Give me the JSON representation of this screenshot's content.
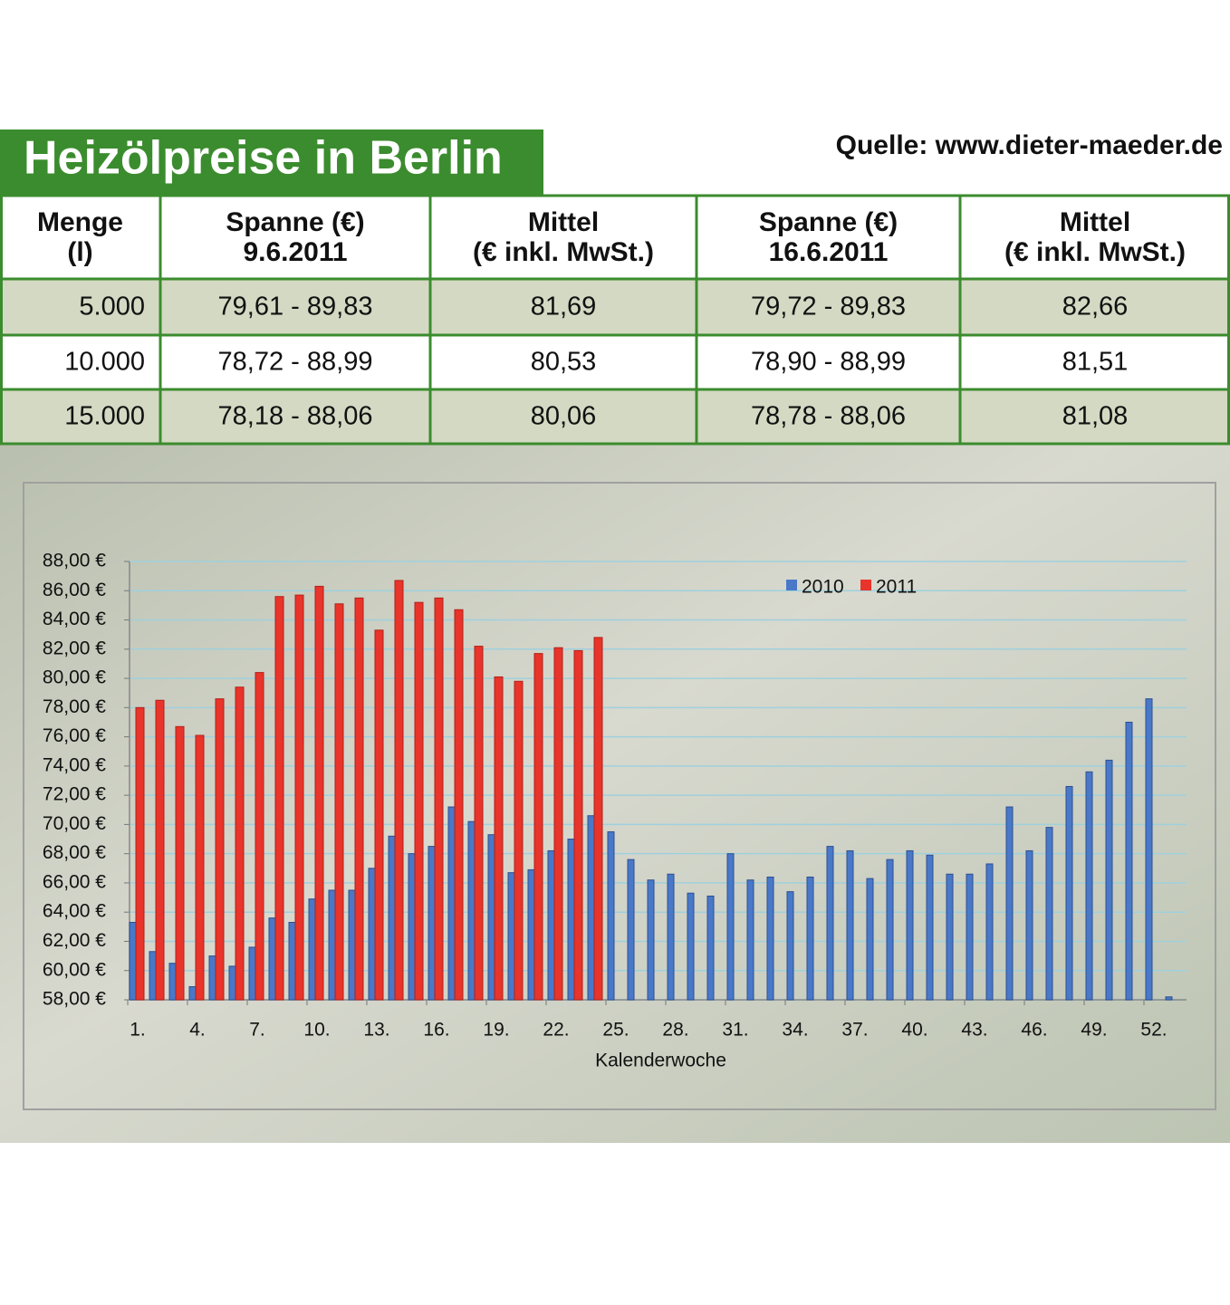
{
  "title": "Heizölpreise in Berlin",
  "source": "Quelle: www.dieter-maeder.de",
  "table": {
    "header": [
      [
        "Menge",
        "(l)"
      ],
      [
        "Spanne (€)",
        "9.6.2011"
      ],
      [
        "Mittel",
        "(€ inkl. MwSt.)"
      ],
      [
        "Spanne (€)",
        "16.6.2011"
      ],
      [
        "Mittel",
        "(€ inkl. MwSt.)"
      ]
    ],
    "rows": [
      [
        "5.000",
        "79,61 - 89,83",
        "81,69",
        "79,72 - 89,83",
        "82,66"
      ],
      [
        "10.000",
        "78,72 - 88,99",
        "80,53",
        "78,90 - 88,99",
        "81,51"
      ],
      [
        "15.000",
        "78,18 - 88,06",
        "80,06",
        "78,78 - 88,06",
        "81,08"
      ]
    ]
  },
  "chart_data": {
    "type": "bar",
    "x_label": "Kalenderwoche",
    "categories": [
      "1.",
      null,
      null,
      "4.",
      null,
      null,
      "7.",
      null,
      null,
      "10.",
      null,
      null,
      "13.",
      null,
      null,
      "16.",
      null,
      null,
      "19.",
      null,
      null,
      "22.",
      null,
      null,
      "25.",
      null,
      null,
      "28.",
      null,
      null,
      "31.",
      null,
      null,
      "34.",
      null,
      null,
      "37.",
      null,
      null,
      "40.",
      null,
      null,
      "43.",
      null,
      null,
      "46.",
      null,
      null,
      "49.",
      null,
      null,
      "52.",
      null
    ],
    "series": [
      {
        "name": "2010",
        "color": "#4a78c8",
        "values": [
          63.3,
          61.3,
          60.5,
          58.9,
          61.0,
          60.3,
          61.6,
          63.6,
          63.3,
          64.9,
          65.5,
          65.5,
          67.0,
          69.2,
          68.0,
          68.5,
          71.2,
          70.2,
          69.3,
          66.7,
          66.9,
          68.2,
          69.0,
          70.6,
          69.5,
          67.6,
          66.2,
          66.6,
          65.3,
          65.1,
          68.0,
          66.2,
          66.4,
          65.4,
          66.4,
          68.5,
          68.2,
          66.3,
          67.6,
          68.2,
          67.9,
          66.6,
          66.6,
          67.3,
          71.2,
          68.2,
          69.8,
          72.6,
          73.6,
          74.4,
          77.0,
          78.6,
          58.2
        ]
      },
      {
        "name": "2011",
        "color": "#e8342a",
        "values": [
          78.0,
          78.5,
          76.7,
          76.1,
          78.6,
          79.4,
          80.4,
          85.6,
          85.7,
          86.3,
          85.1,
          85.5,
          83.3,
          86.7,
          85.2,
          85.5,
          84.7,
          82.2,
          80.1,
          79.8,
          81.7,
          82.1,
          81.9,
          82.8,
          null,
          null,
          null,
          null,
          null,
          null,
          null,
          null,
          null,
          null,
          null,
          null,
          null,
          null,
          null,
          null,
          null,
          null,
          null,
          null,
          null,
          null,
          null,
          null,
          null,
          null,
          null,
          null,
          null
        ]
      }
    ],
    "ylim": [
      58,
      88
    ],
    "yticks": [
      {
        "value": 58,
        "label": "58,00 €"
      },
      {
        "value": 60,
        "label": "60,00 €"
      },
      {
        "value": 62,
        "label": "62,00 €"
      },
      {
        "value": 64,
        "label": "64,00 €"
      },
      {
        "value": 66,
        "label": "66,00 €"
      },
      {
        "value": 68,
        "label": "68,00 €"
      },
      {
        "value": 70,
        "label": "70,00 €"
      },
      {
        "value": 72,
        "label": "72,00 €"
      },
      {
        "value": 74,
        "label": "74,00 €"
      },
      {
        "value": 76,
        "label": "76,00 €"
      },
      {
        "value": 78,
        "label": "78,00 €"
      },
      {
        "value": 80,
        "label": "80,00 €"
      },
      {
        "value": 82,
        "label": "82,00 €"
      },
      {
        "value": 84,
        "label": "84,00 €"
      },
      {
        "value": 86,
        "label": "86,00 €"
      },
      {
        "value": 88,
        "label": "88,00 €"
      }
    ],
    "grid": true,
    "legend": "top-right"
  }
}
